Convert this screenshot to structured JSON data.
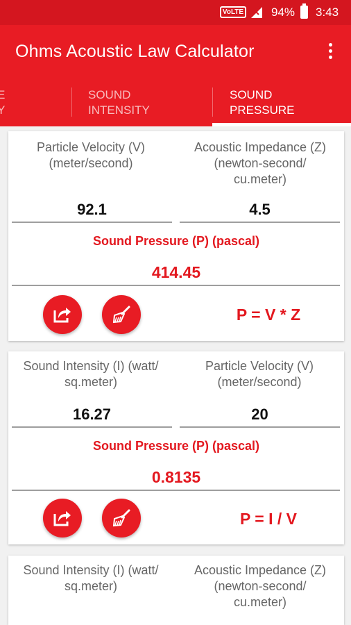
{
  "status_bar": {
    "volte": "VoLTE",
    "battery": "94%",
    "time": "3:43"
  },
  "toolbar": {
    "title": "Ohms Acoustic Law Calculator",
    "menu_icon": "more-vert-icon"
  },
  "tabs": [
    {
      "label": "E\nY",
      "active": false
    },
    {
      "label": "SOUND\nINTENSITY",
      "active": false
    },
    {
      "label": "SOUND\nPRESSURE",
      "active": true
    }
  ],
  "cards": [
    {
      "input1_label": "Particle Velocity (V) (meter/second)",
      "input1_value": "92.1",
      "input2_label": "Acoustic Impedance (Z) (newton-second/ cu.meter)",
      "input2_value": "4.5",
      "result_label": "Sound Pressure (P) (pascal)",
      "result_value": "414.45",
      "formula": "P = V * Z"
    },
    {
      "input1_label": "Sound Intensity (I) (watt/ sq.meter)",
      "input1_value": "16.27",
      "input2_label": "Particle Velocity (V) (meter/second)",
      "input2_value": "20",
      "result_label": "Sound Pressure (P) (pascal)",
      "result_value": "0.8135",
      "formula": "P = I / V"
    },
    {
      "input1_label": "Sound Intensity (I) (watt/ sq.meter)",
      "input2_label": "Acoustic Impedance (Z) (newton-second/ cu.meter)"
    }
  ],
  "colors": {
    "primary": "#e81c24",
    "status_bar": "#d4161f",
    "accent_text": "#e3181f"
  }
}
